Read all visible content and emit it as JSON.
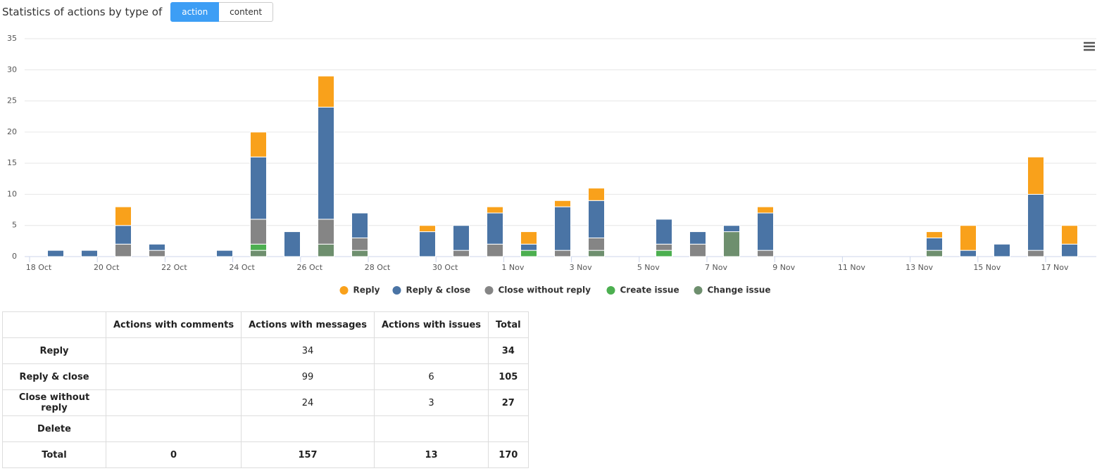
{
  "header": {
    "title": "Statistics of actions by type of",
    "buttons": [
      "action",
      "content"
    ]
  },
  "chart_data": {
    "type": "stacked-bar",
    "categories": [
      "18 Oct",
      null,
      "20 Oct",
      null,
      "22 Oct",
      null,
      "24 Oct",
      null,
      "26 Oct",
      null,
      "28 Oct",
      null,
      "30 Oct",
      null,
      "1 Nov",
      null,
      "3 Nov",
      null,
      "5 Nov",
      null,
      "7 Nov",
      null,
      "9 Nov",
      null,
      "11 Nov",
      null,
      "13 Nov",
      null,
      "15 Nov",
      null,
      "17 Nov"
    ],
    "series": [
      {
        "name": "Reply",
        "color": "#f9a11b",
        "values": [
          0,
          0,
          3,
          0,
          0,
          0,
          4,
          0,
          5,
          0,
          0,
          1,
          0,
          1,
          2,
          1,
          2,
          0,
          0,
          0,
          0,
          1,
          0,
          0,
          0,
          0,
          1,
          4,
          0,
          6,
          3
        ]
      },
      {
        "name": "Reply & close",
        "color": "#4a74a5",
        "values": [
          1,
          1,
          3,
          1,
          0,
          1,
          10,
          4,
          18,
          4,
          0,
          4,
          4,
          5,
          1,
          7,
          6,
          0,
          4,
          2,
          1,
          6,
          0,
          0,
          0,
          0,
          2,
          1,
          2,
          9,
          2
        ]
      },
      {
        "name": "Close without reply",
        "color": "#858585",
        "values": [
          0,
          0,
          2,
          1,
          0,
          0,
          4,
          0,
          4,
          2,
          0,
          0,
          1,
          2,
          0,
          1,
          2,
          0,
          1,
          2,
          0,
          1,
          0,
          0,
          0,
          0,
          0,
          0,
          0,
          1,
          0
        ]
      },
      {
        "name": "Create issue",
        "color": "#4caf50",
        "values": [
          0,
          0,
          0,
          0,
          0,
          0,
          1,
          0,
          0,
          0,
          0,
          0,
          0,
          0,
          1,
          0,
          0,
          0,
          1,
          0,
          0,
          0,
          0,
          0,
          0,
          0,
          0,
          0,
          0,
          0,
          0
        ]
      },
      {
        "name": "Change issue",
        "color": "#6e8f6e",
        "values": [
          0,
          0,
          0,
          0,
          0,
          0,
          1,
          0,
          2,
          1,
          0,
          0,
          0,
          0,
          0,
          0,
          1,
          0,
          0,
          0,
          4,
          0,
          0,
          0,
          0,
          0,
          1,
          0,
          0,
          0,
          0
        ]
      }
    ],
    "ylim": [
      0,
      35
    ],
    "yticks": [
      0,
      5,
      10,
      15,
      20,
      25,
      30,
      35
    ],
    "grid": true,
    "legend": "bottom"
  },
  "table": {
    "columns": [
      "Actions with comments",
      "Actions with messages",
      "Actions with issues",
      "Total"
    ],
    "rows": [
      {
        "label": "Reply",
        "cells": [
          null,
          34,
          null,
          34
        ]
      },
      {
        "label": "Reply & close",
        "cells": [
          null,
          99,
          6,
          105
        ]
      },
      {
        "label": "Close without reply",
        "cells": [
          null,
          24,
          3,
          27
        ]
      },
      {
        "label": "Delete",
        "cells": [
          null,
          null,
          null,
          null
        ]
      },
      {
        "label": "Total",
        "cells": [
          0,
          157,
          13,
          170
        ]
      }
    ]
  }
}
